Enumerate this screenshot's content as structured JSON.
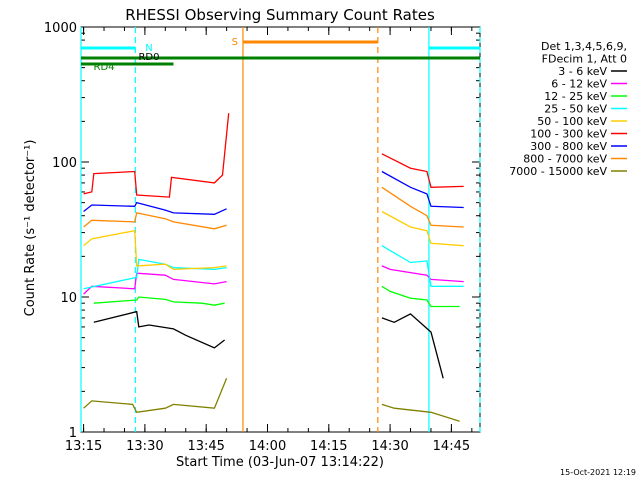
{
  "chart_data": {
    "type": "line",
    "title": "RHESSI Observing Summary Count Rates",
    "xlabel": "Start Time (03-Jun-07 13:14:22)",
    "ylabel": "Count Rate (s⁻¹ detector⁻¹)",
    "yscale": "log",
    "ylim": [
      1,
      1000
    ],
    "xlim": [
      "13:14:22",
      "14:52:00"
    ],
    "x_ticks": [
      "13:15",
      "13:30",
      "13:45",
      "14:00",
      "14:15",
      "14:30",
      "14:45"
    ],
    "y_ticks": [
      "1",
      "10",
      "100",
      "1000"
    ],
    "timestamp": "15-Oct-2021 12:19",
    "legend": {
      "position": "right",
      "header": [
        "Det 1,3,4,5,6,9,",
        "FDecim 1, Att 0"
      ]
    },
    "flags": {
      "N_label": "N",
      "RD0_label": "RD0",
      "RD4_label": "RD4",
      "S_label": "S"
    },
    "series": [
      {
        "name": "3 - 6 keV",
        "color": "#000000",
        "x": [
          "13:17:30",
          "13:28:00",
          "13:28:30",
          "13:31:00",
          "13:37:00",
          "13:40:00",
          "13:47:00",
          "13:49:30",
          "14:28:00",
          "14:31:00",
          "14:35:00",
          "14:40:00",
          "14:43:00"
        ],
        "y": [
          6.5,
          7.8,
          6.0,
          6.2,
          5.8,
          5.2,
          4.2,
          4.8,
          7.0,
          6.5,
          7.5,
          5.5,
          2.5
        ]
      },
      {
        "name": "6 - 12 keV",
        "color": "#ff00ff",
        "x": [
          "13:15:00",
          "13:17:00",
          "13:27:30",
          "13:28:00",
          "13:35:00",
          "13:37:00",
          "13:47:00",
          "13:50:00",
          "14:28:00",
          "14:30:00",
          "14:39:00",
          "14:40:00",
          "14:48:00"
        ],
        "y": [
          10.5,
          12.0,
          11.5,
          15.0,
          14.5,
          13.5,
          12.5,
          13.0,
          17.0,
          16.0,
          14.5,
          13.5,
          13.0
        ]
      },
      {
        "name": "12 - 25 keV",
        "color": "#00ff00",
        "x": [
          "13:17:30",
          "13:28:00",
          "13:28:30",
          "13:35:00",
          "13:37:00",
          "13:44:00",
          "13:47:00",
          "13:49:30",
          "14:28:00",
          "14:30:00",
          "14:35:00",
          "14:39:00",
          "14:40:00",
          "14:47:00"
        ],
        "y": [
          9.0,
          9.5,
          10.0,
          9.6,
          9.2,
          9.0,
          8.7,
          9.0,
          12.0,
          11.0,
          9.8,
          9.5,
          8.5,
          8.5
        ]
      },
      {
        "name": "25 - 50 keV",
        "color": "#00ffff",
        "x": [
          "13:15:00",
          "13:28:00",
          "13:28:30",
          "13:35:00",
          "13:37:00",
          "13:47:00",
          "13:50:00",
          "14:28:00",
          "14:35:00",
          "14:39:00",
          "14:40:00",
          "14:48:00"
        ],
        "y": [
          11.5,
          14.0,
          19.0,
          17.5,
          16.5,
          16.0,
          16.5,
          24.0,
          18.0,
          18.5,
          12.0,
          12.0
        ]
      },
      {
        "name": "50 - 100 keV",
        "color": "#ffcc00",
        "x": [
          "13:15:00",
          "13:17:00",
          "13:27:30",
          "13:28:00",
          "13:35:00",
          "13:37:00",
          "13:47:00",
          "13:50:00",
          "14:28:00",
          "14:35:00",
          "14:39:00",
          "14:40:00",
          "14:48:00"
        ],
        "y": [
          24.0,
          27.0,
          31.0,
          17.0,
          17.5,
          16.0,
          16.5,
          17.0,
          43.0,
          33.0,
          31.0,
          25.0,
          24.0
        ]
      },
      {
        "name": "100 - 300 keV",
        "color": "#ff0000",
        "x": [
          "13:15:00",
          "13:17:00",
          "13:17:30",
          "13:27:30",
          "13:28:00",
          "13:36:00",
          "13:36:30",
          "13:47:00",
          "13:49:00",
          "13:50:30",
          "14:28:00",
          "14:35:00",
          "14:39:00",
          "14:40:00",
          "14:48:00"
        ],
        "y": [
          58.0,
          60.0,
          82.0,
          85.0,
          57.0,
          55.0,
          77.0,
          70.0,
          80.0,
          230.0,
          115.0,
          90.0,
          85.0,
          65.0,
          66.0
        ]
      },
      {
        "name": "300 - 800 keV",
        "color": "#0000ff",
        "x": [
          "13:15:00",
          "13:17:00",
          "13:27:30",
          "13:28:00",
          "13:35:00",
          "13:37:00",
          "13:47:00",
          "13:50:00",
          "14:28:00",
          "14:35:00",
          "14:39:00",
          "14:40:00",
          "14:48:00"
        ],
        "y": [
          43.0,
          48.0,
          47.0,
          50.0,
          44.0,
          42.0,
          41.0,
          45.0,
          85.0,
          65.0,
          58.0,
          47.0,
          46.0
        ]
      },
      {
        "name": "800 - 7000 keV",
        "color": "#ff8800",
        "x": [
          "13:15:00",
          "13:17:00",
          "13:27:30",
          "13:28:00",
          "13:35:00",
          "13:37:00",
          "13:47:00",
          "13:50:00",
          "14:28:00",
          "14:35:00",
          "14:39:00",
          "14:40:00",
          "14:48:00"
        ],
        "y": [
          33.0,
          37.0,
          36.0,
          42.0,
          38.0,
          36.0,
          32.0,
          34.0,
          65.0,
          47.0,
          40.0,
          34.0,
          33.0
        ]
      },
      {
        "name": "7000 - 15000 keV",
        "color": "#808000",
        "x": [
          "13:15:00",
          "13:17:00",
          "13:27:00",
          "13:28:00",
          "13:35:00",
          "13:37:00",
          "13:47:00",
          "13:50:00",
          "14:28:00",
          "14:31:00",
          "14:40:00",
          "14:47:00"
        ],
        "y": [
          1.5,
          1.7,
          1.6,
          1.4,
          1.5,
          1.6,
          1.5,
          2.5,
          1.6,
          1.5,
          1.4,
          1.2
        ]
      }
    ],
    "markers": [
      {
        "label": "N",
        "color": "#00ffff",
        "x": [
          "13:14:22",
          "13:27:40",
          "14:39:30",
          "14:52:00"
        ]
      },
      {
        "label": "S",
        "color": "#ff8800",
        "x": [
          "13:54:00",
          "14:27:00"
        ]
      }
    ]
  }
}
